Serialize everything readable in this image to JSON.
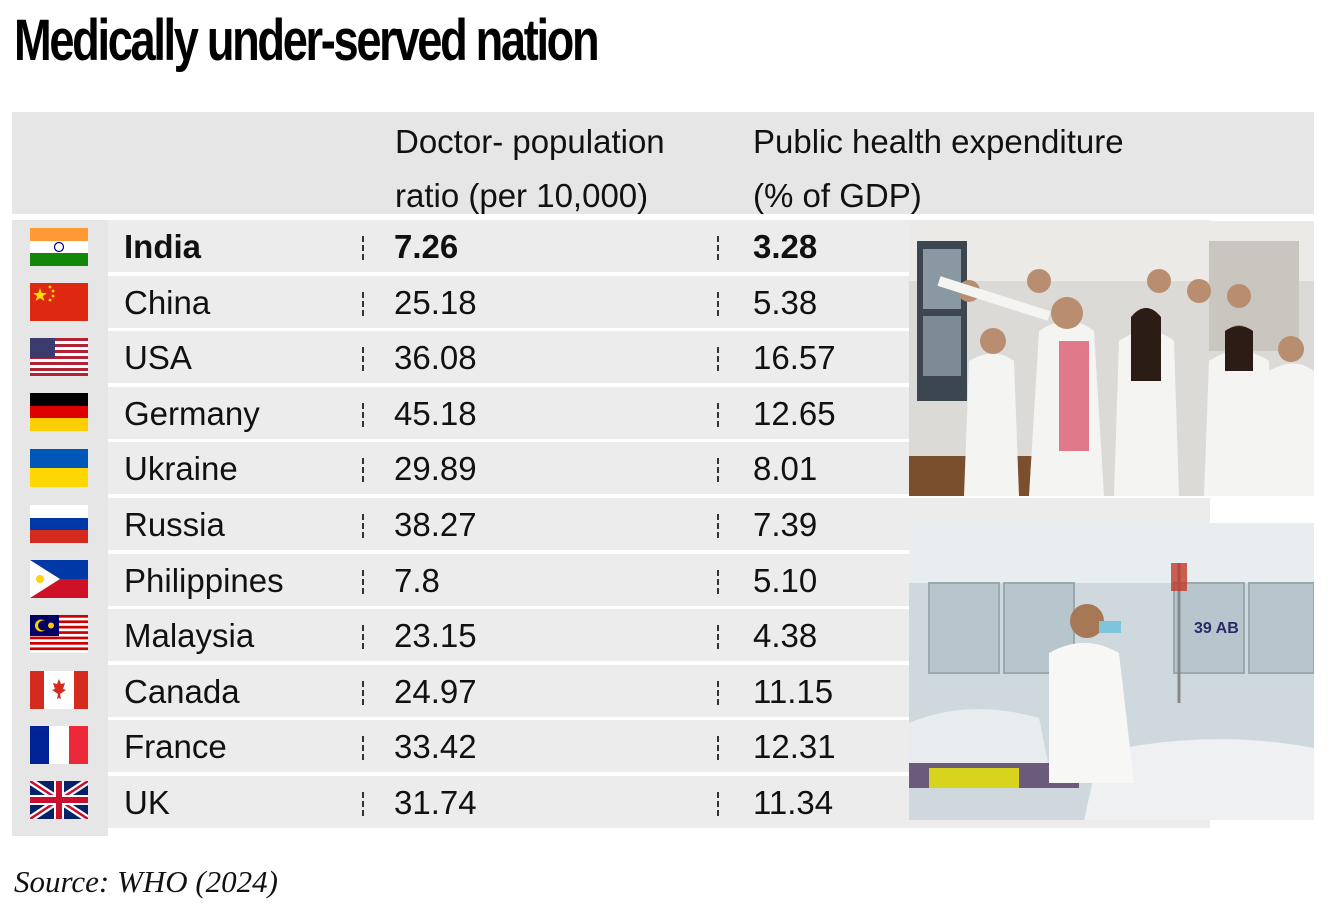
{
  "title": "Medically under-served nation",
  "source": "Source: WHO (2024)",
  "header": {
    "doctor_line1": "Doctor- population",
    "doctor_line2": "ratio (per 10,000)",
    "exp_line1": "Public health expenditure",
    "exp_line2": "(% of GDP)"
  },
  "rows": [
    {
      "country": "India",
      "doctor": "7.26",
      "expenditure": "3.28",
      "flag": "india-flag-icon"
    },
    {
      "country": "China",
      "doctor": "25.18",
      "expenditure": "5.38",
      "flag": "china-flag-icon"
    },
    {
      "country": "USA",
      "doctor": "36.08",
      "expenditure": "16.57",
      "flag": "usa-flag-icon"
    },
    {
      "country": "Germany",
      "doctor": "45.18",
      "expenditure": "12.65",
      "flag": "germany-flag-icon"
    },
    {
      "country": "Ukraine",
      "doctor": "29.89",
      "expenditure": "8.01",
      "flag": "ukraine-flag-icon"
    },
    {
      "country": "Russia",
      "doctor": "38.27",
      "expenditure": "7.39",
      "flag": "russia-flag-icon"
    },
    {
      "country": "Philippines",
      "doctor": "7.8",
      "expenditure": "5.10",
      "flag": "philippines-flag-icon"
    },
    {
      "country": "Malaysia",
      "doctor": "23.15",
      "expenditure": "4.38",
      "flag": "malaysia-flag-icon"
    },
    {
      "country": "Canada",
      "doctor": "24.97",
      "expenditure": "11.15",
      "flag": "canada-flag-icon"
    },
    {
      "country": "France",
      "doctor": "33.42",
      "expenditure": "12.31",
      "flag": "france-flag-icon"
    },
    {
      "country": "UK",
      "doctor": "31.74",
      "expenditure": "11.34",
      "flag": "uk-flag-icon"
    }
  ],
  "chart_data": {
    "type": "table",
    "title": "Medically under-served nation",
    "columns": [
      "Doctor- population ratio (per 10,000)",
      "Public health expenditure (% of GDP)"
    ],
    "categories": [
      "India",
      "China",
      "USA",
      "Germany",
      "Ukraine",
      "Russia",
      "Philippines",
      "Malaysia",
      "Canada",
      "France",
      "UK"
    ],
    "series": [
      {
        "name": "Doctor- population ratio (per 10,000)",
        "values": [
          7.26,
          25.18,
          36.08,
          45.18,
          29.89,
          38.27,
          7.8,
          23.15,
          24.97,
          33.42,
          31.74
        ]
      },
      {
        "name": "Public health expenditure (% of GDP)",
        "values": [
          3.28,
          5.38,
          16.57,
          12.65,
          8.01,
          7.39,
          5.1,
          4.38,
          11.15,
          12.31,
          11.34
        ]
      }
    ],
    "highlighted_row": "India",
    "source": "Source: WHO (2024)"
  },
  "colors": {
    "header_bg": "#e6e6e6",
    "row_bg": "#ececec"
  }
}
